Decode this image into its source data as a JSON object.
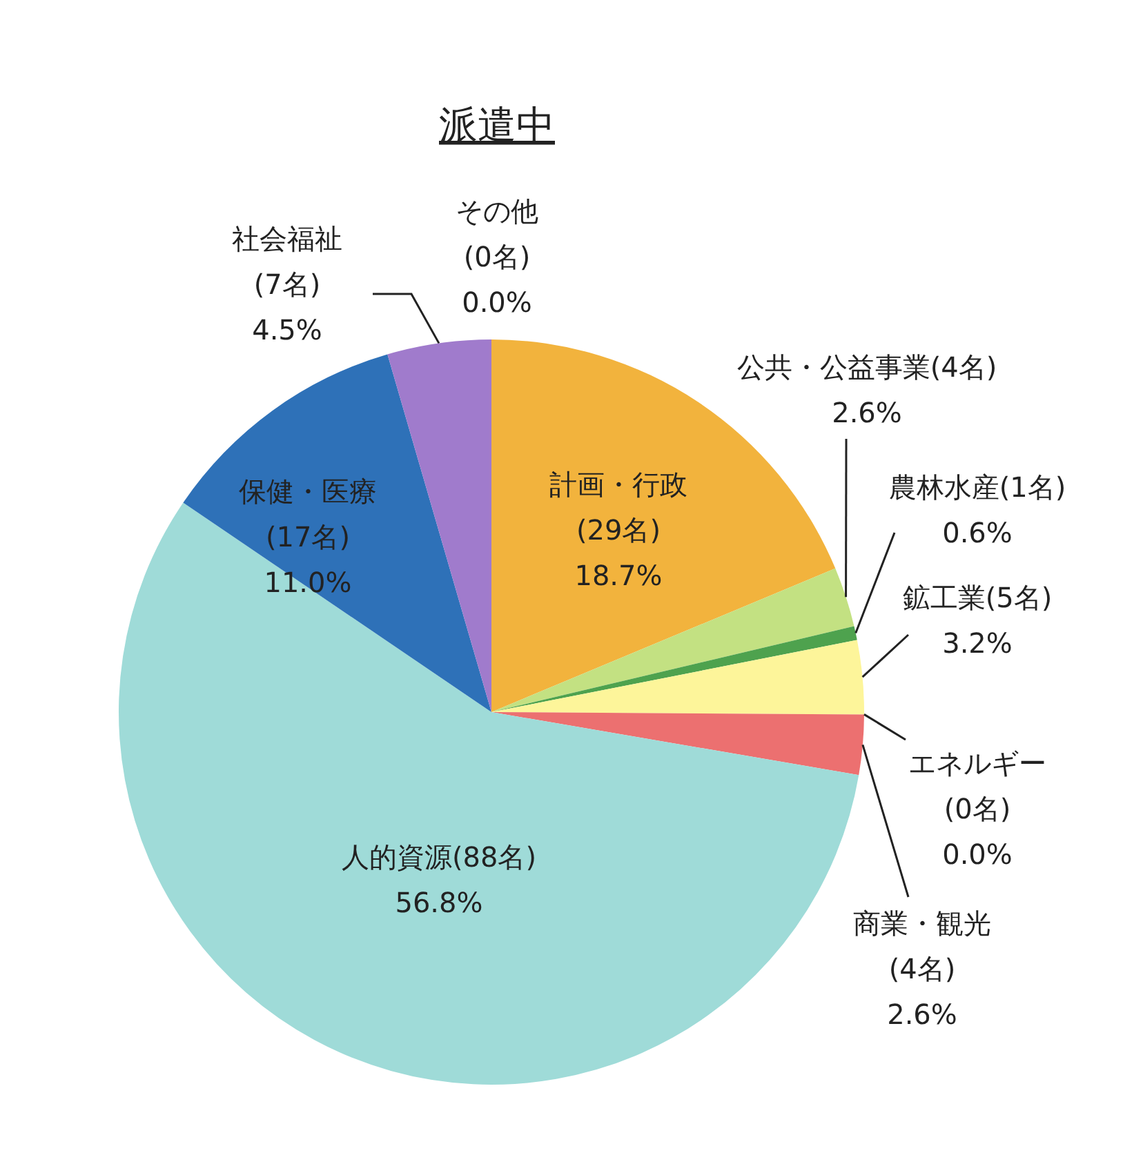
{
  "chart_data": {
    "type": "pie",
    "title": "派遣中",
    "categories": [
      "計画・行政\n(29名)",
      "公共・公益事業(4名)",
      "農林水産(1名)",
      "鉱工業(5名)",
      "エネルギー\n(0名)",
      "商業・観光\n(4名)",
      "人的資源(88名)",
      "保健・医療\n(17名)",
      "社会福祉\n(7名)",
      "その他\n(0名)"
    ],
    "values": [
      18.7,
      2.6,
      0.6,
      3.2,
      0.0,
      2.6,
      56.8,
      11.0,
      4.5,
      0.0
    ],
    "value_labels": [
      "18.7%",
      "2.6%",
      "0.6%",
      "3.2%",
      "0.0%",
      "2.6%",
      "56.8%",
      "11.0%",
      "4.5%",
      "0.0%"
    ],
    "colors": [
      "#f2b33d",
      "#c3e182",
      "#4ea24e",
      "#fdf59a",
      "#dddddd",
      "#ec7070",
      "#9fdbd8",
      "#2e71b8",
      "#a07bcc",
      "#cccccc"
    ]
  }
}
